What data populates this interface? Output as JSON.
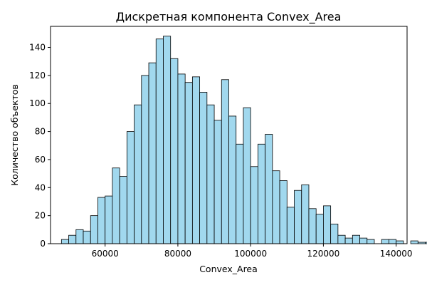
{
  "chart_data": {
    "type": "bar",
    "title": "Дискретная компонента Convex_Area",
    "xlabel": "Convex_Area",
    "ylabel": "Количество объектов",
    "xlim": [
      45000,
      143000
    ],
    "ylim": [
      0,
      155
    ],
    "bin_width": 2000,
    "bin_start": 48000,
    "x_ticks": [
      60000,
      80000,
      100000,
      120000,
      140000
    ],
    "x_tick_labels": [
      "60000",
      "80000",
      "100000",
      "120000",
      "140000"
    ],
    "y_ticks": [
      0,
      20,
      40,
      60,
      80,
      100,
      120,
      140
    ],
    "y_tick_labels": [
      "0",
      "20",
      "40",
      "60",
      "80",
      "100",
      "120",
      "140"
    ],
    "bar_color": "#a1d8ee",
    "edge_color": "#000000",
    "grid": false,
    "values": [
      3,
      6,
      10,
      9,
      20,
      33,
      34,
      54,
      48,
      80,
      99,
      120,
      129,
      146,
      148,
      132,
      121,
      115,
      119,
      108,
      99,
      88,
      117,
      91,
      71,
      97,
      55,
      71,
      78,
      52,
      45,
      26,
      38,
      42,
      25,
      21,
      27,
      14,
      6,
      4,
      6,
      4,
      3,
      0,
      3,
      3,
      2,
      0,
      2,
      1,
      1,
      1
    ]
  }
}
